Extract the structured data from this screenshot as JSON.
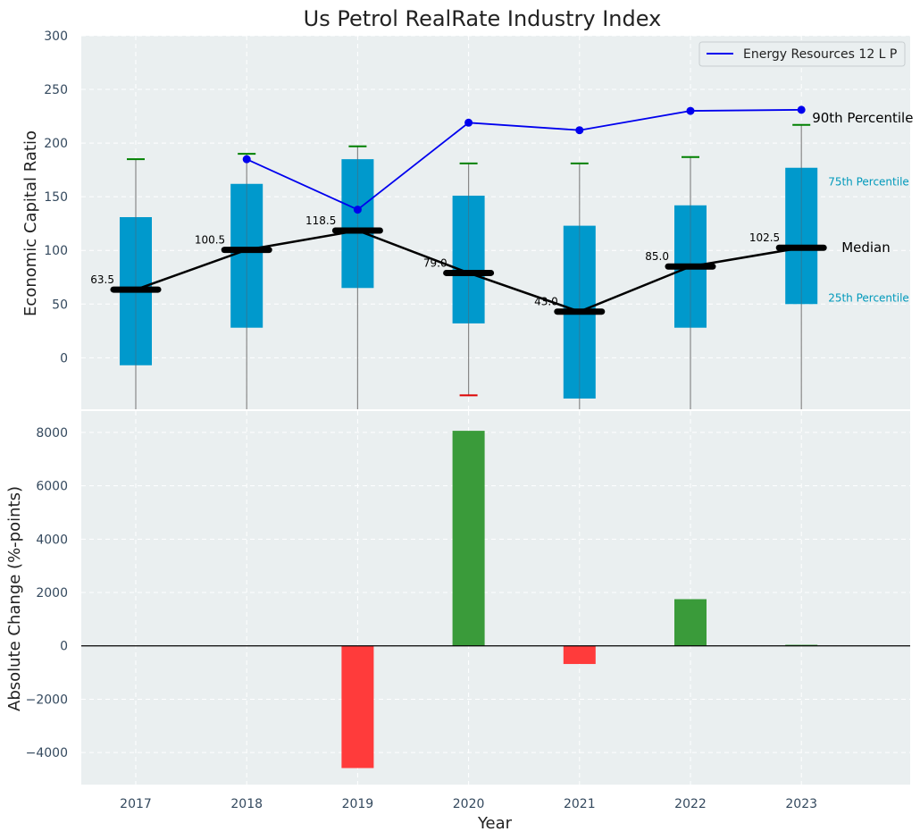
{
  "chart_data": {
    "title": "Us Petrol RealRate Industry Index",
    "xlabel": "Year",
    "categories": [
      "2017",
      "2018",
      "2019",
      "2020",
      "2021",
      "2022",
      "2023"
    ],
    "top_panel": {
      "type": "box",
      "ylabel": "Economic Capital Ratio",
      "ylim": [
        -48,
        300
      ],
      "yticks": [
        "300",
        "250",
        "200",
        "150",
        "100",
        "50",
        "0"
      ],
      "ytick_values": [
        300,
        250,
        200,
        150,
        100,
        50,
        0
      ],
      "boxes": [
        {
          "q1": -7,
          "q3": 131,
          "median": 63.5,
          "whisker_top": 185,
          "whisker_bottom": -48,
          "cap_top_color": "#008000",
          "cap_bottom_color": null
        },
        {
          "q1": 28,
          "q3": 162,
          "median": 100.5,
          "whisker_top": 190,
          "whisker_bottom": -48,
          "cap_top_color": "#008000",
          "cap_bottom_color": null
        },
        {
          "q1": 65,
          "q3": 185,
          "median": 118.5,
          "whisker_top": 197,
          "whisker_bottom": -48,
          "cap_top_color": "#008000",
          "cap_bottom_color": null
        },
        {
          "q1": 32,
          "q3": 151,
          "median": 79.0,
          "whisker_top": 181,
          "whisker_bottom": -35,
          "cap_top_color": "#008000",
          "cap_bottom_color": "#dd0000"
        },
        {
          "q1": -38,
          "q3": 123,
          "median": 43.0,
          "whisker_top": 181,
          "whisker_bottom": -48,
          "cap_top_color": "#008000",
          "cap_bottom_color": null
        },
        {
          "q1": 28,
          "q3": 142,
          "median": 85.0,
          "whisker_top": 187,
          "whisker_bottom": -48,
          "cap_top_color": "#008000",
          "cap_bottom_color": null
        },
        {
          "q1": 50,
          "q3": 177,
          "median": 102.5,
          "whisker_top": 217,
          "whisker_bottom": -48,
          "cap_top_color": "#008000",
          "cap_bottom_color": null
        }
      ],
      "median_labels": [
        "63.5",
        "100.5",
        "118.5",
        "79.0",
        "43.0",
        "85.0",
        "102.5"
      ],
      "series": [
        {
          "name": "Energy Resources 12 L P",
          "color": "#0000ee",
          "x": [
            "2018",
            "2019",
            "2020",
            "2021",
            "2022",
            "2023"
          ],
          "values": [
            185,
            138,
            219,
            212,
            230,
            231
          ]
        }
      ],
      "annotations": {
        "p90": "90th Percentile",
        "p75": "75th Percentile",
        "p25": "25th Percentile",
        "median": "Median"
      },
      "legend_position": "top-right"
    },
    "bottom_panel": {
      "type": "bar",
      "ylabel": "Absolute Change (%-points)",
      "ylim": [
        -5200,
        8800
      ],
      "yticks": [
        "8000",
        "6000",
        "4000",
        "2000",
        "0",
        "−2000",
        "−4000"
      ],
      "ytick_values": [
        8000,
        6000,
        4000,
        2000,
        0,
        -2000,
        -4000
      ],
      "values": [
        0,
        0,
        -4580,
        8060,
        -680,
        1750,
        40
      ],
      "positive_color": "#3a9b3a",
      "negative_color": "#ff3b3b"
    },
    "colors": {
      "background": "#eaeff0",
      "box_fill": "#0099cc",
      "median_line": "#000000",
      "whisker": "#888888"
    }
  }
}
